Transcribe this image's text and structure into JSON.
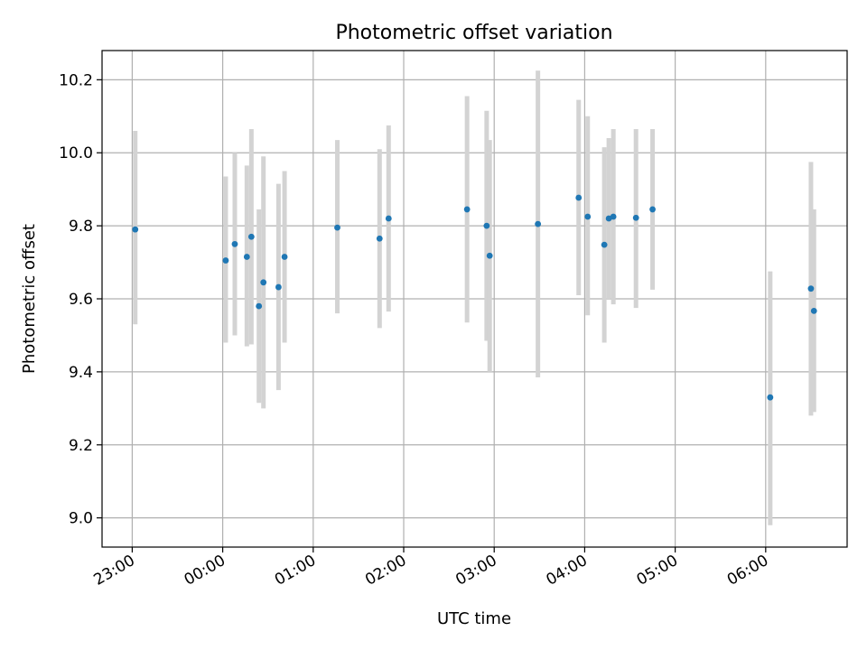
{
  "chart_data": {
    "type": "scatter",
    "title": "Photometric offset variation",
    "xlabel": "UTC time",
    "ylabel": "Photometric offset",
    "x_ticks": [
      "23:00",
      "00:00",
      "01:00",
      "02:00",
      "03:00",
      "04:00",
      "05:00",
      "06:00"
    ],
    "y_ticks": [
      "9.0",
      "9.2",
      "9.4",
      "9.6",
      "9.8",
      "10.0",
      "10.2"
    ],
    "ylim": [
      8.92,
      10.28
    ],
    "xlim": [
      "22:40",
      "06:54"
    ],
    "grid": true,
    "colors": {
      "marker": "#1f77b4",
      "errorbar": "#d3d3d3",
      "grid": "#b0b0b0"
    },
    "points": [
      {
        "x": "23:02",
        "y": 9.79,
        "yerr_low": 9.53,
        "yerr_high": 10.06
      },
      {
        "x": "00:02",
        "y": 9.705,
        "yerr_low": 9.48,
        "yerr_high": 9.935
      },
      {
        "x": "00:08",
        "y": 9.75,
        "yerr_low": 9.5,
        "yerr_high": 10.0
      },
      {
        "x": "00:16",
        "y": 9.715,
        "yerr_low": 9.47,
        "yerr_high": 9.965
      },
      {
        "x": "00:19",
        "y": 9.77,
        "yerr_low": 9.475,
        "yerr_high": 10.065
      },
      {
        "x": "00:24",
        "y": 9.58,
        "yerr_low": 9.315,
        "yerr_high": 9.845
      },
      {
        "x": "00:27",
        "y": 9.645,
        "yerr_low": 9.3,
        "yerr_high": 9.99
      },
      {
        "x": "00:37",
        "y": 9.632,
        "yerr_low": 9.35,
        "yerr_high": 9.915
      },
      {
        "x": "00:41",
        "y": 9.715,
        "yerr_low": 9.48,
        "yerr_high": 9.95
      },
      {
        "x": "01:16",
        "y": 9.795,
        "yerr_low": 9.56,
        "yerr_high": 10.035
      },
      {
        "x": "01:44",
        "y": 9.765,
        "yerr_low": 9.52,
        "yerr_high": 10.01
      },
      {
        "x": "01:50",
        "y": 9.82,
        "yerr_low": 9.565,
        "yerr_high": 10.075
      },
      {
        "x": "02:42",
        "y": 9.845,
        "yerr_low": 9.535,
        "yerr_high": 10.155
      },
      {
        "x": "02:55",
        "y": 9.8,
        "yerr_low": 9.485,
        "yerr_high": 10.115
      },
      {
        "x": "02:57",
        "y": 9.718,
        "yerr_low": 9.4,
        "yerr_high": 10.035
      },
      {
        "x": "03:29",
        "y": 9.805,
        "yerr_low": 9.385,
        "yerr_high": 10.225
      },
      {
        "x": "03:56",
        "y": 9.877,
        "yerr_low": 9.61,
        "yerr_high": 10.145
      },
      {
        "x": "04:02",
        "y": 9.825,
        "yerr_low": 9.555,
        "yerr_high": 10.1
      },
      {
        "x": "04:13",
        "y": 9.748,
        "yerr_low": 9.48,
        "yerr_high": 10.015
      },
      {
        "x": "04:16",
        "y": 9.82,
        "yerr_low": 9.6,
        "yerr_high": 10.04
      },
      {
        "x": "04:19",
        "y": 9.825,
        "yerr_low": 9.585,
        "yerr_high": 10.065
      },
      {
        "x": "04:34",
        "y": 9.822,
        "yerr_low": 9.575,
        "yerr_high": 10.065
      },
      {
        "x": "04:45",
        "y": 9.845,
        "yerr_low": 9.625,
        "yerr_high": 10.065
      },
      {
        "x": "06:03",
        "y": 9.33,
        "yerr_low": 8.98,
        "yerr_high": 9.675
      },
      {
        "x": "06:30",
        "y": 9.628,
        "yerr_low": 9.28,
        "yerr_high": 9.975
      },
      {
        "x": "06:32",
        "y": 9.567,
        "yerr_low": 9.29,
        "yerr_high": 9.845
      }
    ]
  }
}
